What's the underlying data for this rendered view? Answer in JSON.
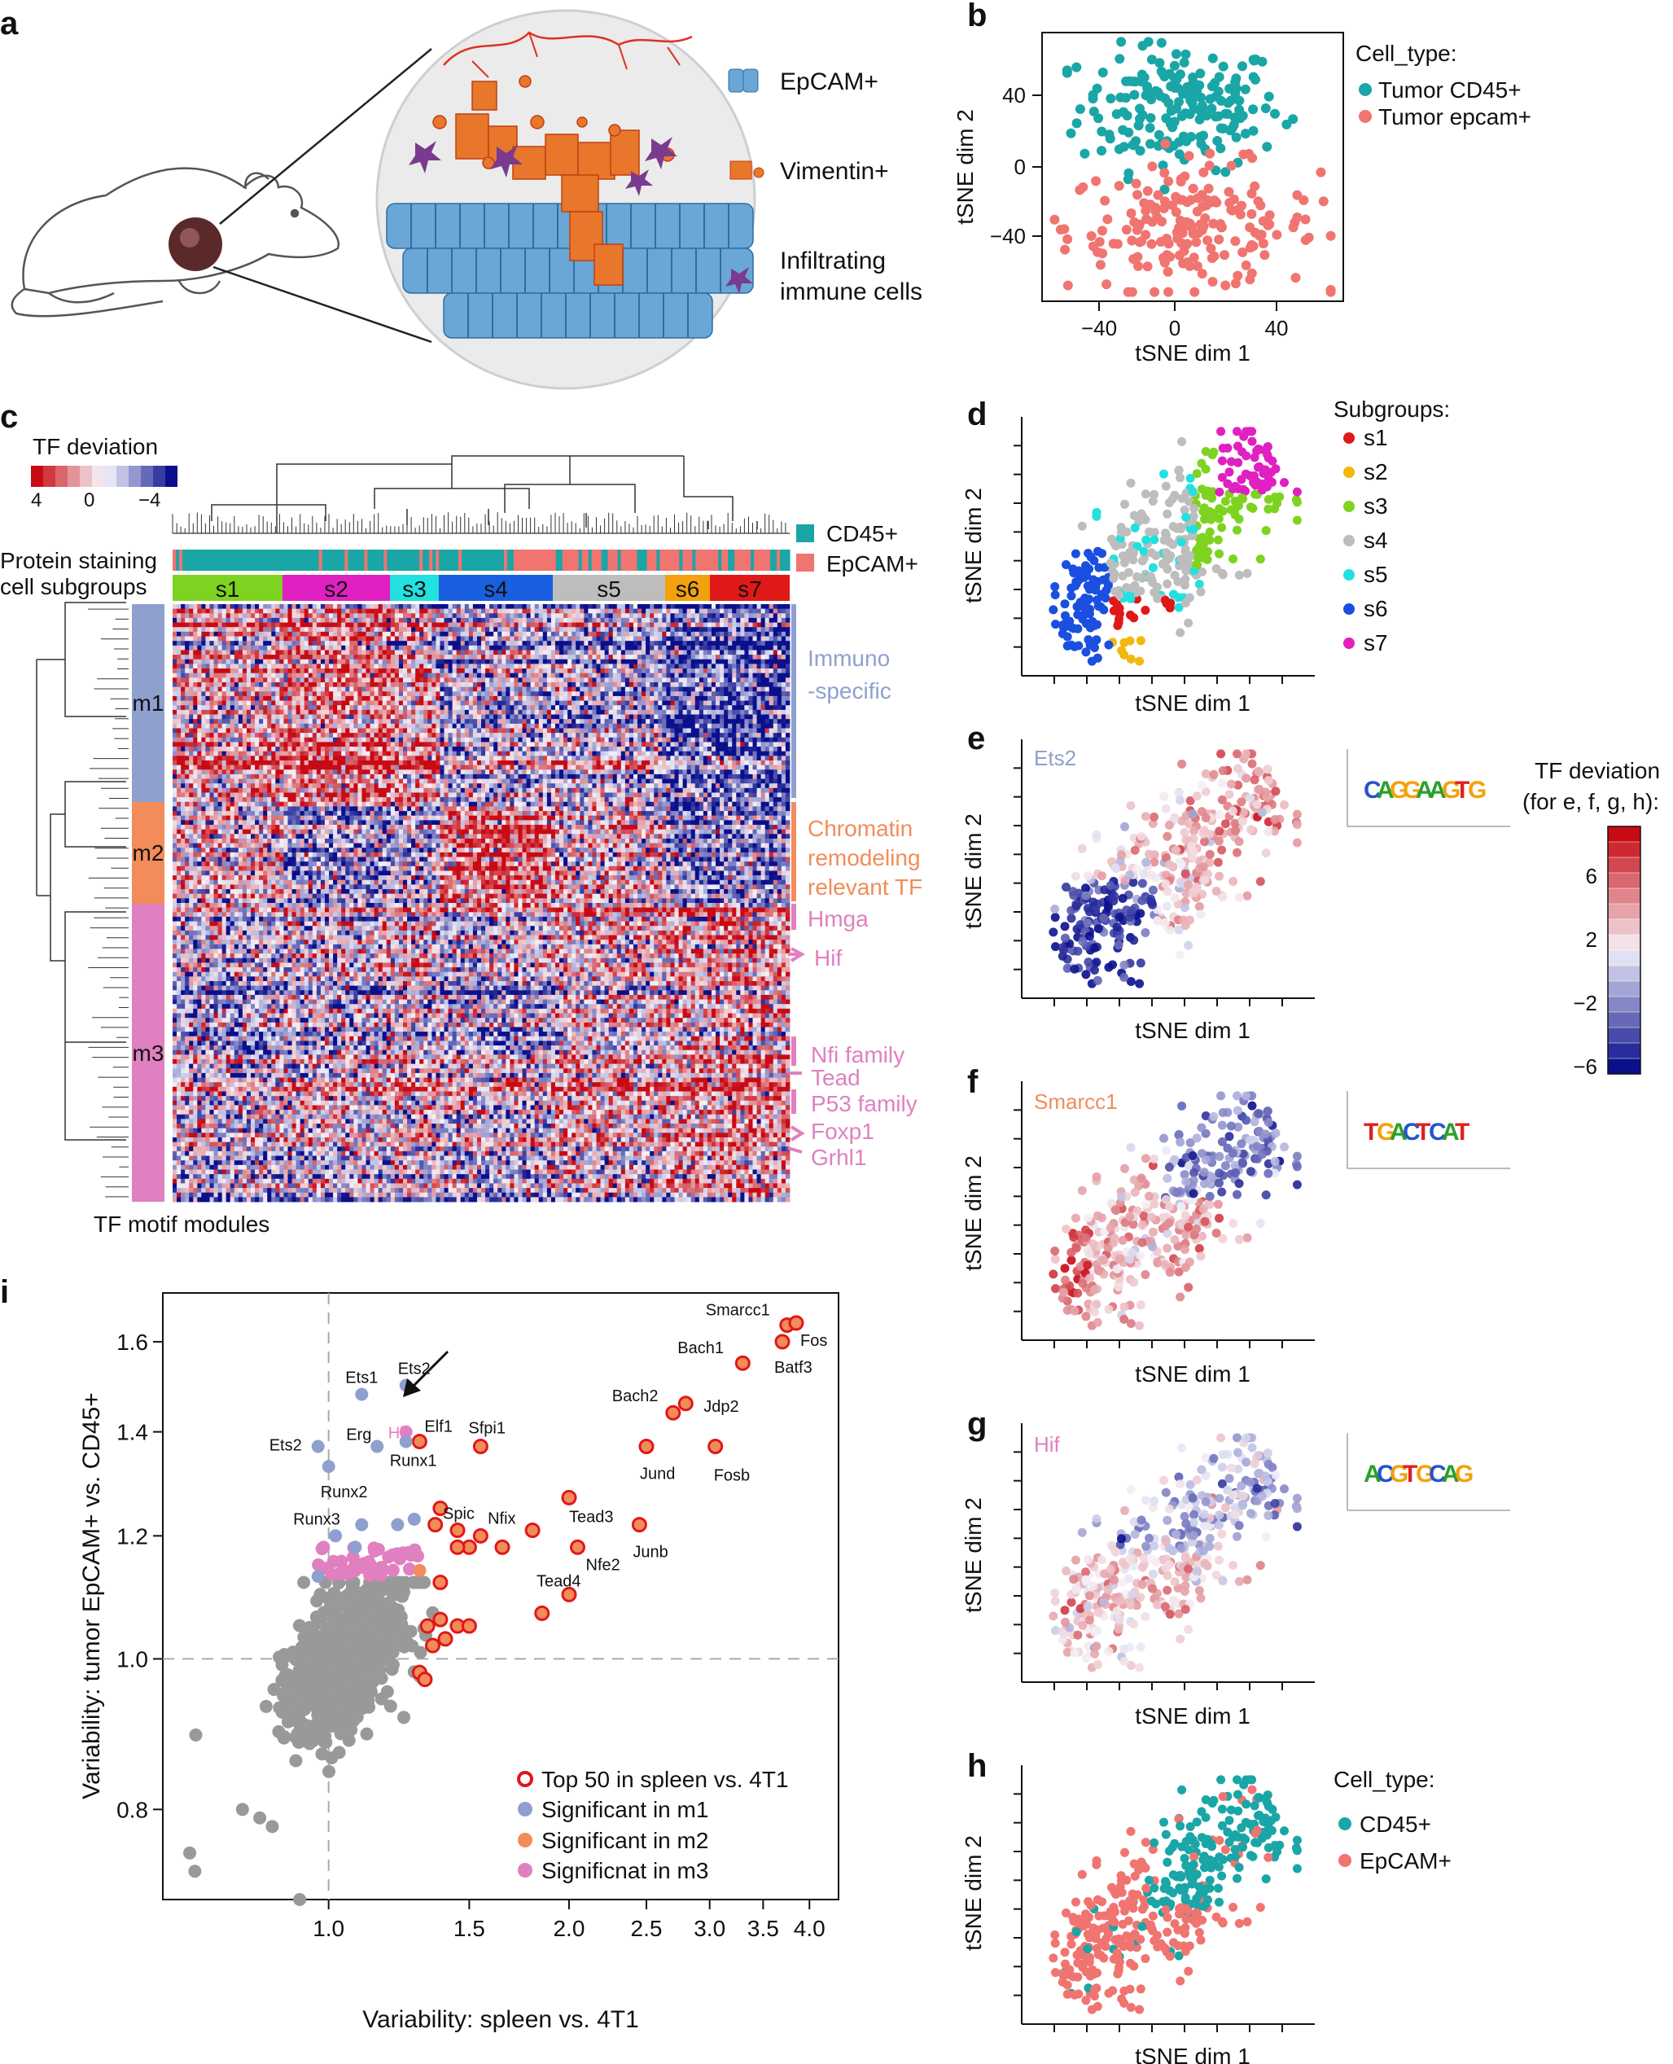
{
  "panels": {
    "a": {
      "label": "a",
      "legend": [
        {
          "name": "EpCAM+",
          "color": "#6aa6d6"
        },
        {
          "name": "Vimentin+",
          "color": "#e8772b"
        },
        {
          "name": "Infiltrating",
          "name2": "immune cells",
          "color": "#7a3b8f"
        }
      ]
    },
    "b": {
      "label": "b",
      "legend_title": "Cell_type:",
      "legend": [
        {
          "name": "Tumor CD45+",
          "color": "#1aa6a6"
        },
        {
          "name": "Tumor epcam+",
          "color": "#f07470"
        }
      ]
    },
    "c": {
      "label": "c",
      "tf_deviation_title": "TF deviation",
      "scale_ticks": [
        "4",
        "0",
        "−4"
      ],
      "row_label_protein": "Protein staining",
      "row_label_subgroups": "cell subgroups",
      "protein_legend": [
        {
          "name": "CD45+",
          "color": "#1aa6a6"
        },
        {
          "name": "EpCAM+",
          "color": "#f07470"
        }
      ],
      "subgroups": [
        {
          "name": "s1",
          "color": "#7ed321"
        },
        {
          "name": "s2",
          "color": "#e020c0"
        },
        {
          "name": "s3",
          "color": "#22e0e0"
        },
        {
          "name": "s4",
          "color": "#1a5fe0"
        },
        {
          "name": "s5",
          "color": "#bdbdbd"
        },
        {
          "name": "s6",
          "color": "#f2a20d"
        },
        {
          "name": "s7",
          "color": "#e01818"
        }
      ],
      "modules": [
        {
          "name": "m1",
          "color": "#8fa0cf"
        },
        {
          "name": "m2",
          "color": "#f28c5a"
        },
        {
          "name": "m3",
          "color": "#e080c0"
        }
      ],
      "annotations": {
        "immuno1": "Immuno",
        "immuno2": "-specific",
        "chrom1": "Chromatin",
        "chrom2": "remodeling",
        "chrom3": "relevant TF",
        "hmga": "Hmga",
        "hif": "Hif",
        "nfi": "Nfi family",
        "tead": "Tead",
        "p53": "P53 family",
        "foxp1": "Foxp1",
        "grhl1": "Grhl1"
      },
      "bottom_label": "TF motif modules"
    },
    "d": {
      "label": "d",
      "legend_title": "Subgroups:",
      "legend": [
        {
          "name": "s1",
          "color": "#e01818"
        },
        {
          "name": "s2",
          "color": "#f2b80d"
        },
        {
          "name": "s3",
          "color": "#7ed321"
        },
        {
          "name": "s4",
          "color": "#bdbdbd"
        },
        {
          "name": "s5",
          "color": "#22e0e0"
        },
        {
          "name": "s6",
          "color": "#1a4fe0"
        },
        {
          "name": "s7",
          "color": "#e020c0"
        }
      ]
    },
    "e": {
      "label": "e",
      "tf": "Ets2",
      "tf_color": "#8fa0cf"
    },
    "f": {
      "label": "f",
      "tf": "Smarcc1",
      "tf_color": "#f28c5a"
    },
    "g": {
      "label": "g",
      "tf": "Hif",
      "tf_color": "#e080c0"
    },
    "h": {
      "label": "h",
      "legend_title": "Cell_type:",
      "legend": [
        {
          "name": "CD45+",
          "color": "#1aa6a6"
        },
        {
          "name": "EpCAM+",
          "color": "#f07470"
        }
      ]
    },
    "colorbar": {
      "title1": "TF deviation",
      "title2": "(for e, f, g, h):",
      "ticks": [
        "6",
        "2",
        "−2",
        "−6"
      ]
    },
    "i": {
      "label": "i"
    }
  },
  "tsne_axis": {
    "x": "tSNE dim 1",
    "y": "tSNE dim 2"
  },
  "chart_data": [
    {
      "type": "scatter",
      "panel": "b",
      "title": "",
      "xlabel": "tSNE dim 1",
      "ylabel": "tSNE dim 2",
      "xlim": [
        -55,
        65
      ],
      "ylim": [
        -70,
        75
      ],
      "xticks": [
        "−40",
        "0",
        "40"
      ],
      "yticks": [
        "40",
        "0",
        "−40"
      ],
      "series": [
        {
          "name": "Tumor CD45+",
          "color": "#1aa6a6",
          "x_range": [
            -45,
            45
          ],
          "y_range": [
            -20,
            70
          ]
        },
        {
          "name": "Tumor epcam+",
          "color": "#f07470",
          "x_range": [
            -50,
            60
          ],
          "y_range": [
            -65,
            15
          ]
        }
      ]
    },
    {
      "type": "heatmap",
      "panel": "c",
      "title": "TF deviation",
      "colorscale": {
        "min": -4,
        "max": 4
      },
      "column_groups": [
        "s1",
        "s2",
        "s3",
        "s4",
        "s5",
        "s6",
        "s7"
      ],
      "row_modules": [
        "m1",
        "m2",
        "m3"
      ]
    },
    {
      "type": "scatter",
      "panel": "i",
      "title": "",
      "xlabel": "Variability: spleen vs. 4T1",
      "ylabel": "Variability: tumor EpCAM+ vs. CD45+",
      "xscale": "log",
      "yscale": "log",
      "xticks": [
        "1.0",
        "1.5",
        "2.0",
        "2.5",
        "3.0",
        "3.5",
        "4.0"
      ],
      "yticks": [
        "0.8",
        "1.0",
        "1.2",
        "1.4",
        "1.6"
      ],
      "reference_lines": {
        "x": 1.0,
        "y": 1.0
      },
      "legend": [
        {
          "name": "Top 50 in spleen vs. 4T1",
          "color": "#e01818",
          "style": "ring"
        },
        {
          "name": "Significant in m1",
          "color": "#8fa0cf",
          "style": "dot"
        },
        {
          "name": "Significant in m2",
          "color": "#f28c5a",
          "style": "dot"
        },
        {
          "name": "Significnat in m3",
          "color": "#e080c0",
          "style": "dot"
        }
      ],
      "labeled_points": [
        {
          "name": "Smarcc1",
          "x": 3.75,
          "y": 1.64,
          "group": "top50"
        },
        {
          "name": "Fos",
          "x": 3.85,
          "y": 1.645,
          "group": "top50"
        },
        {
          "name": "Batf3",
          "x": 3.7,
          "y": 1.6,
          "group": "top50"
        },
        {
          "name": "Bach1",
          "x": 3.3,
          "y": 1.55,
          "group": "top50"
        },
        {
          "name": "Jdp2",
          "x": 2.8,
          "y": 1.46,
          "group": "top50"
        },
        {
          "name": "Bach2",
          "x": 2.7,
          "y": 1.44,
          "group": "top50"
        },
        {
          "name": "Jund",
          "x": 2.5,
          "y": 1.37,
          "group": "top50"
        },
        {
          "name": "Fosb",
          "x": 3.05,
          "y": 1.37,
          "group": "top50"
        },
        {
          "name": "Junb",
          "x": 2.45,
          "y": 1.22,
          "group": "top50"
        },
        {
          "name": "Tead3",
          "x": 2.0,
          "y": 1.27,
          "group": "top50"
        },
        {
          "name": "Nfix",
          "x": 1.8,
          "y": 1.21,
          "group": "top50"
        },
        {
          "name": "Nfe2",
          "x": 2.05,
          "y": 1.18,
          "group": "top50"
        },
        {
          "name": "Tead4",
          "x": 2.0,
          "y": 1.1,
          "group": "top50"
        },
        {
          "name": "Spic",
          "x": 1.45,
          "y": 1.21,
          "group": "top50"
        },
        {
          "name": "Sfpi1",
          "x": 1.55,
          "y": 1.37,
          "group": "top50"
        },
        {
          "name": "Elf1",
          "x": 1.3,
          "y": 1.38,
          "group": "top50"
        },
        {
          "name": "Ets1",
          "x": 1.1,
          "y": 1.48,
          "group": "m1"
        },
        {
          "name": "Ets2",
          "x": 1.25,
          "y": 1.5,
          "group": "m1"
        },
        {
          "name": "Ets2",
          "x": 0.97,
          "y": 1.37,
          "group": "m1"
        },
        {
          "name": "Erg",
          "x": 1.15,
          "y": 1.37,
          "group": "m1"
        },
        {
          "name": "Hif",
          "x": 1.25,
          "y": 1.4,
          "group": "m3"
        },
        {
          "name": "Runx1",
          "x": 1.25,
          "y": 1.38,
          "group": "m1"
        },
        {
          "name": "Runx2",
          "x": 1.0,
          "y": 1.33,
          "group": "m1"
        },
        {
          "name": "Runx3",
          "x": 1.02,
          "y": 1.2,
          "group": "m1"
        }
      ]
    }
  ]
}
